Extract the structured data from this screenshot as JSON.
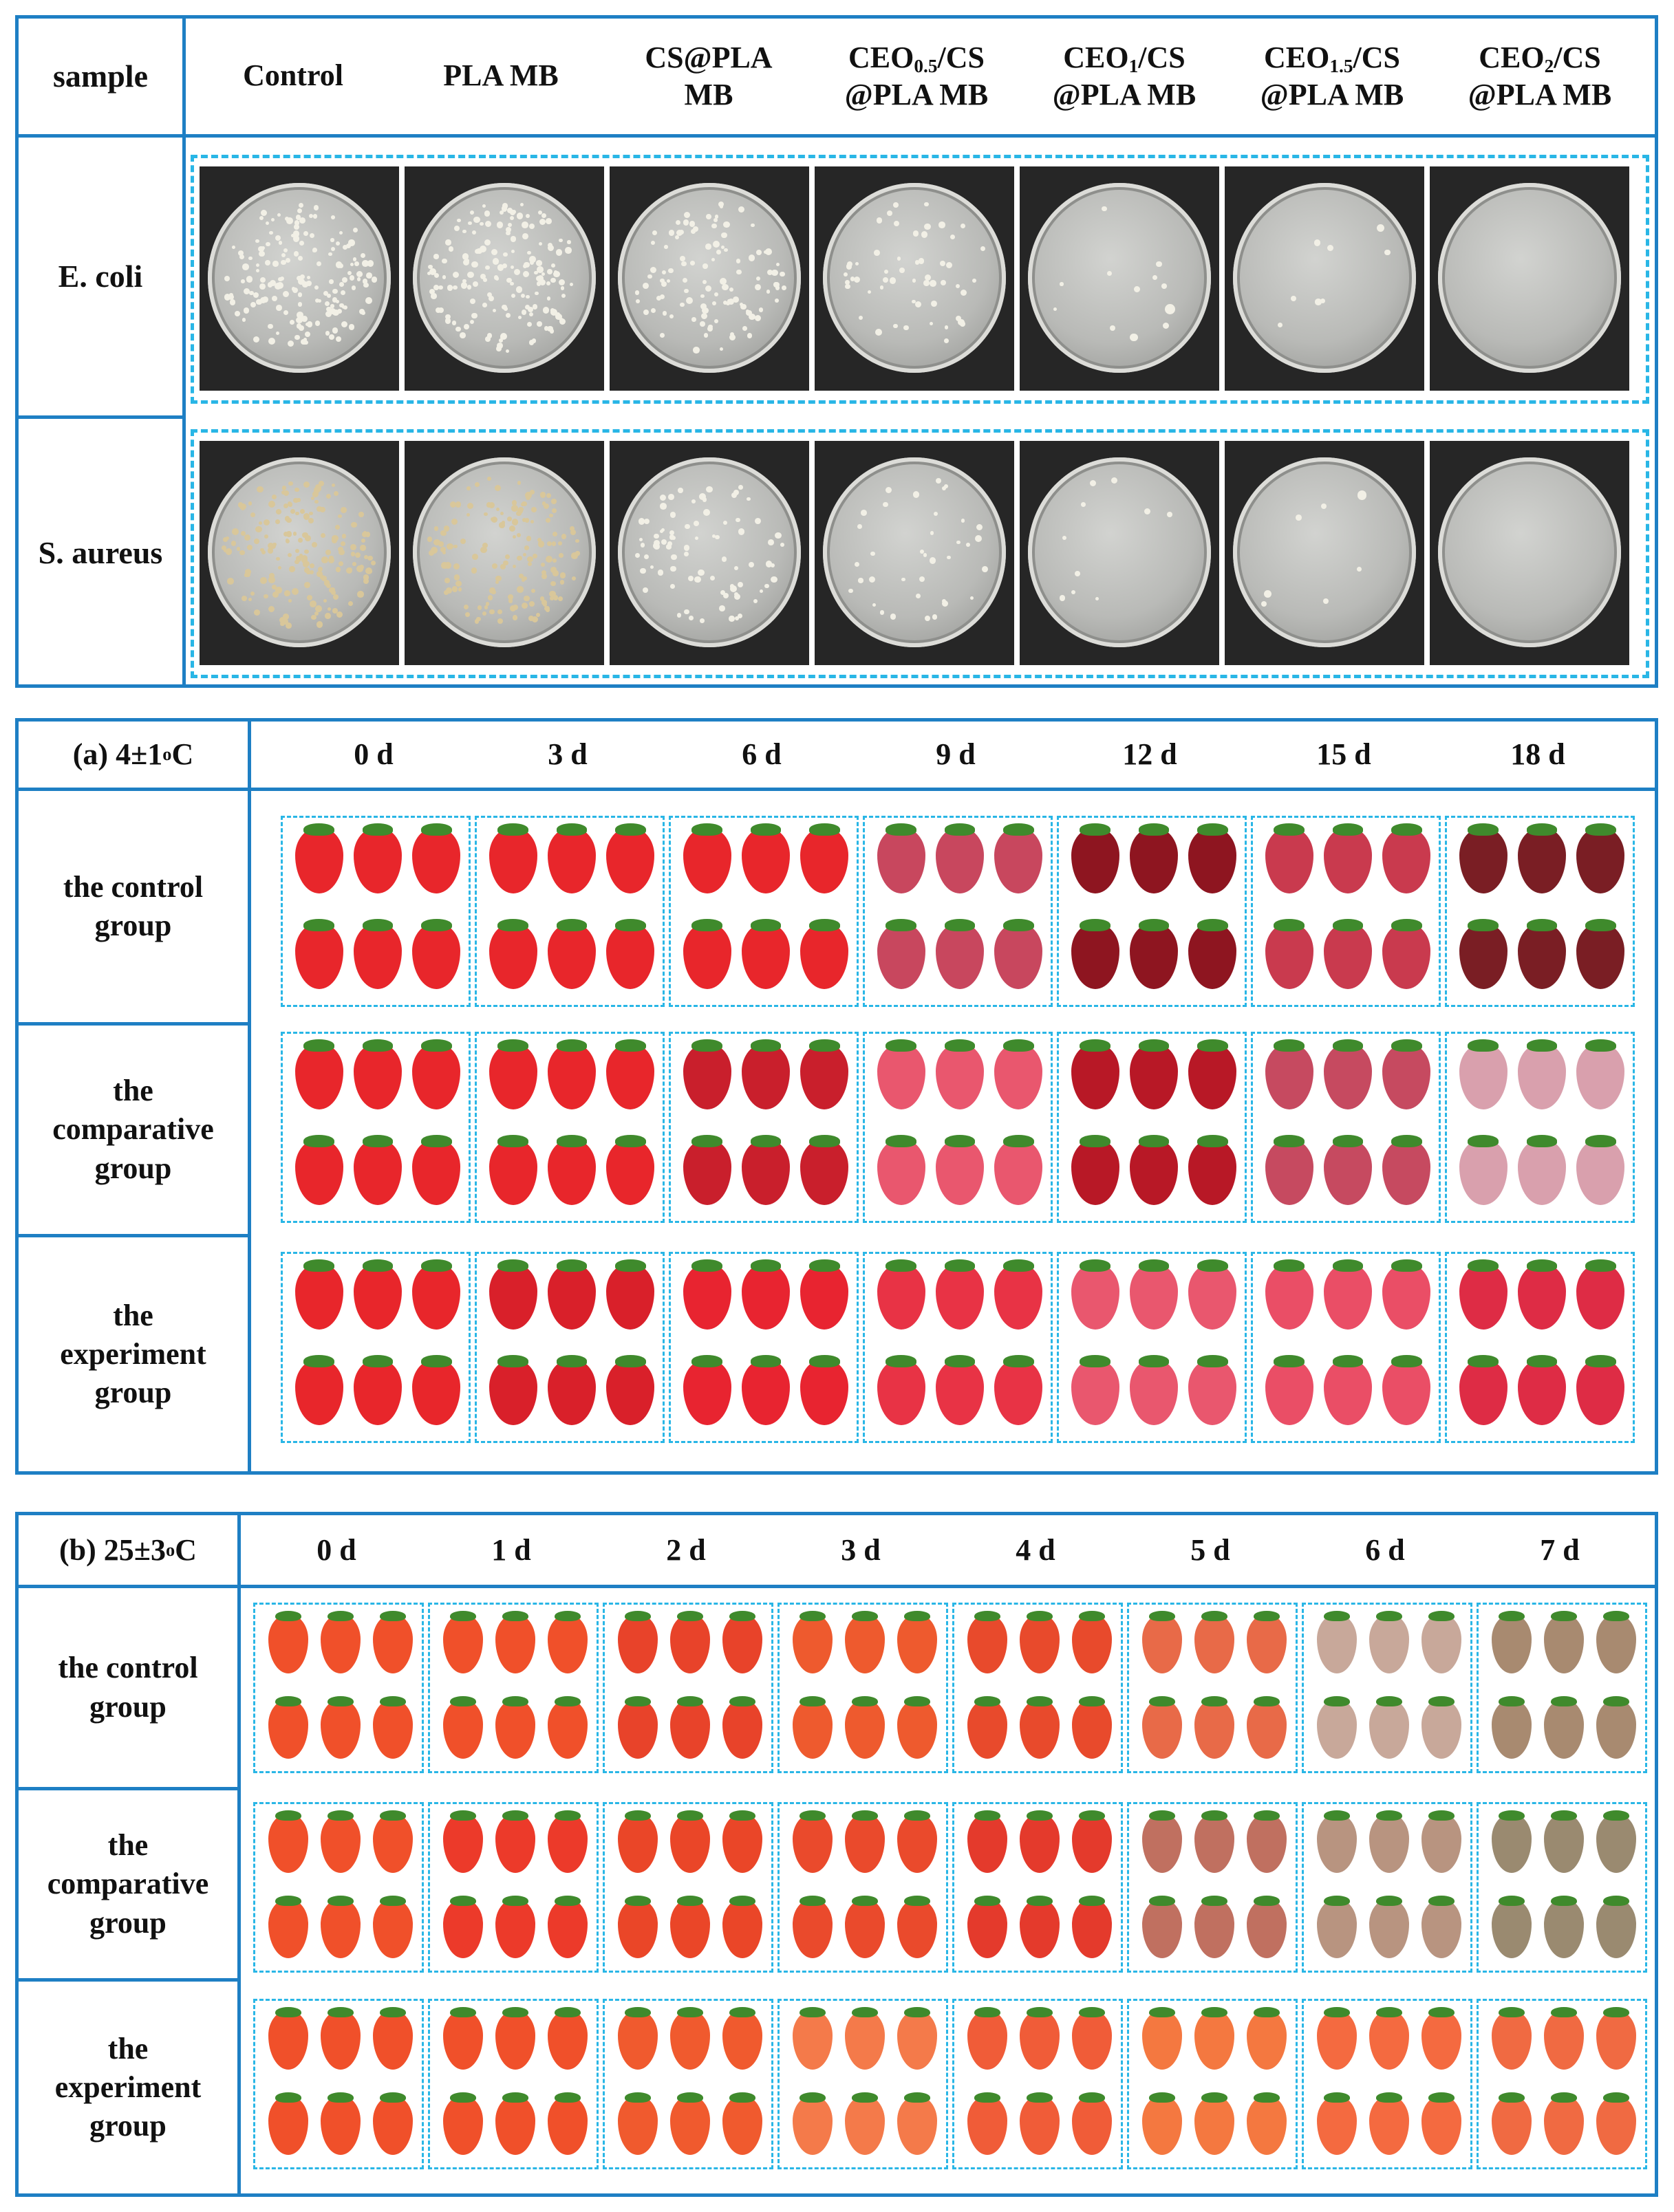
{
  "top_table": {
    "header_sample": "sample",
    "columns": [
      {
        "main": "Control",
        "sub": "",
        "tail": ""
      },
      {
        "main": "PLA MB",
        "sub": "",
        "tail": ""
      },
      {
        "main": "CS@PLA",
        "sub": "",
        "tail": "MB"
      },
      {
        "main": "CEO",
        "sub": "0.5",
        "tail": "/CS"
      },
      {
        "main": "CEO",
        "sub": "1",
        "tail": "/CS"
      },
      {
        "main": "CEO",
        "sub": "1.5",
        "tail": "/CS"
      },
      {
        "main": "CEO",
        "sub": "2",
        "tail": "/CS"
      }
    ],
    "column_second_lines": [
      "",
      "",
      "",
      "@PLA MB",
      "@PLA MB",
      "@PLA MB",
      "@PLA MB"
    ],
    "rows": [
      "E. coli",
      "S. aureus"
    ],
    "colony_density": [
      [
        0.95,
        0.9,
        0.6,
        0.3,
        0.05,
        0.03,
        0.0
      ],
      [
        1.0,
        0.85,
        0.45,
        0.2,
        0.04,
        0.02,
        0.0
      ]
    ]
  },
  "panel_a": {
    "title": "(a) 4±1 °C",
    "title_main": "(a) 4±1 ",
    "title_sup": "o",
    "title_unit": "C",
    "days": [
      "0 d",
      "3 d",
      "6 d",
      "9 d",
      "12 d",
      "15 d",
      "18 d"
    ],
    "groups": [
      {
        "line1": "the control",
        "line2": "group",
        "line3": ""
      },
      {
        "line1": "the",
        "line2": "comparative",
        "line3": "group"
      },
      {
        "line1": "the",
        "line2": "experiment",
        "line3": "group"
      }
    ]
  },
  "panel_b": {
    "title_main": "(b) 25±3 ",
    "title_sup": "o",
    "title_unit": "C",
    "days": [
      "0 d",
      "1 d",
      "2 d",
      "3 d",
      "4 d",
      "5 d",
      "6 d",
      "7 d"
    ],
    "groups": [
      {
        "line1": "the control",
        "line2": "group",
        "line3": ""
      },
      {
        "line1": "the",
        "line2": "comparative",
        "line3": "group"
      },
      {
        "line1": "the",
        "line2": "experiment",
        "line3": "group"
      }
    ]
  },
  "colors": {
    "frame": "#1e7fc4",
    "dashed": "#29b6e6",
    "fresh_red": "#e8262b",
    "dark_red": "#8e1520",
    "pink": "#e9576e",
    "orange_red": "#f0502a",
    "mold": "#cbbfb4"
  }
}
